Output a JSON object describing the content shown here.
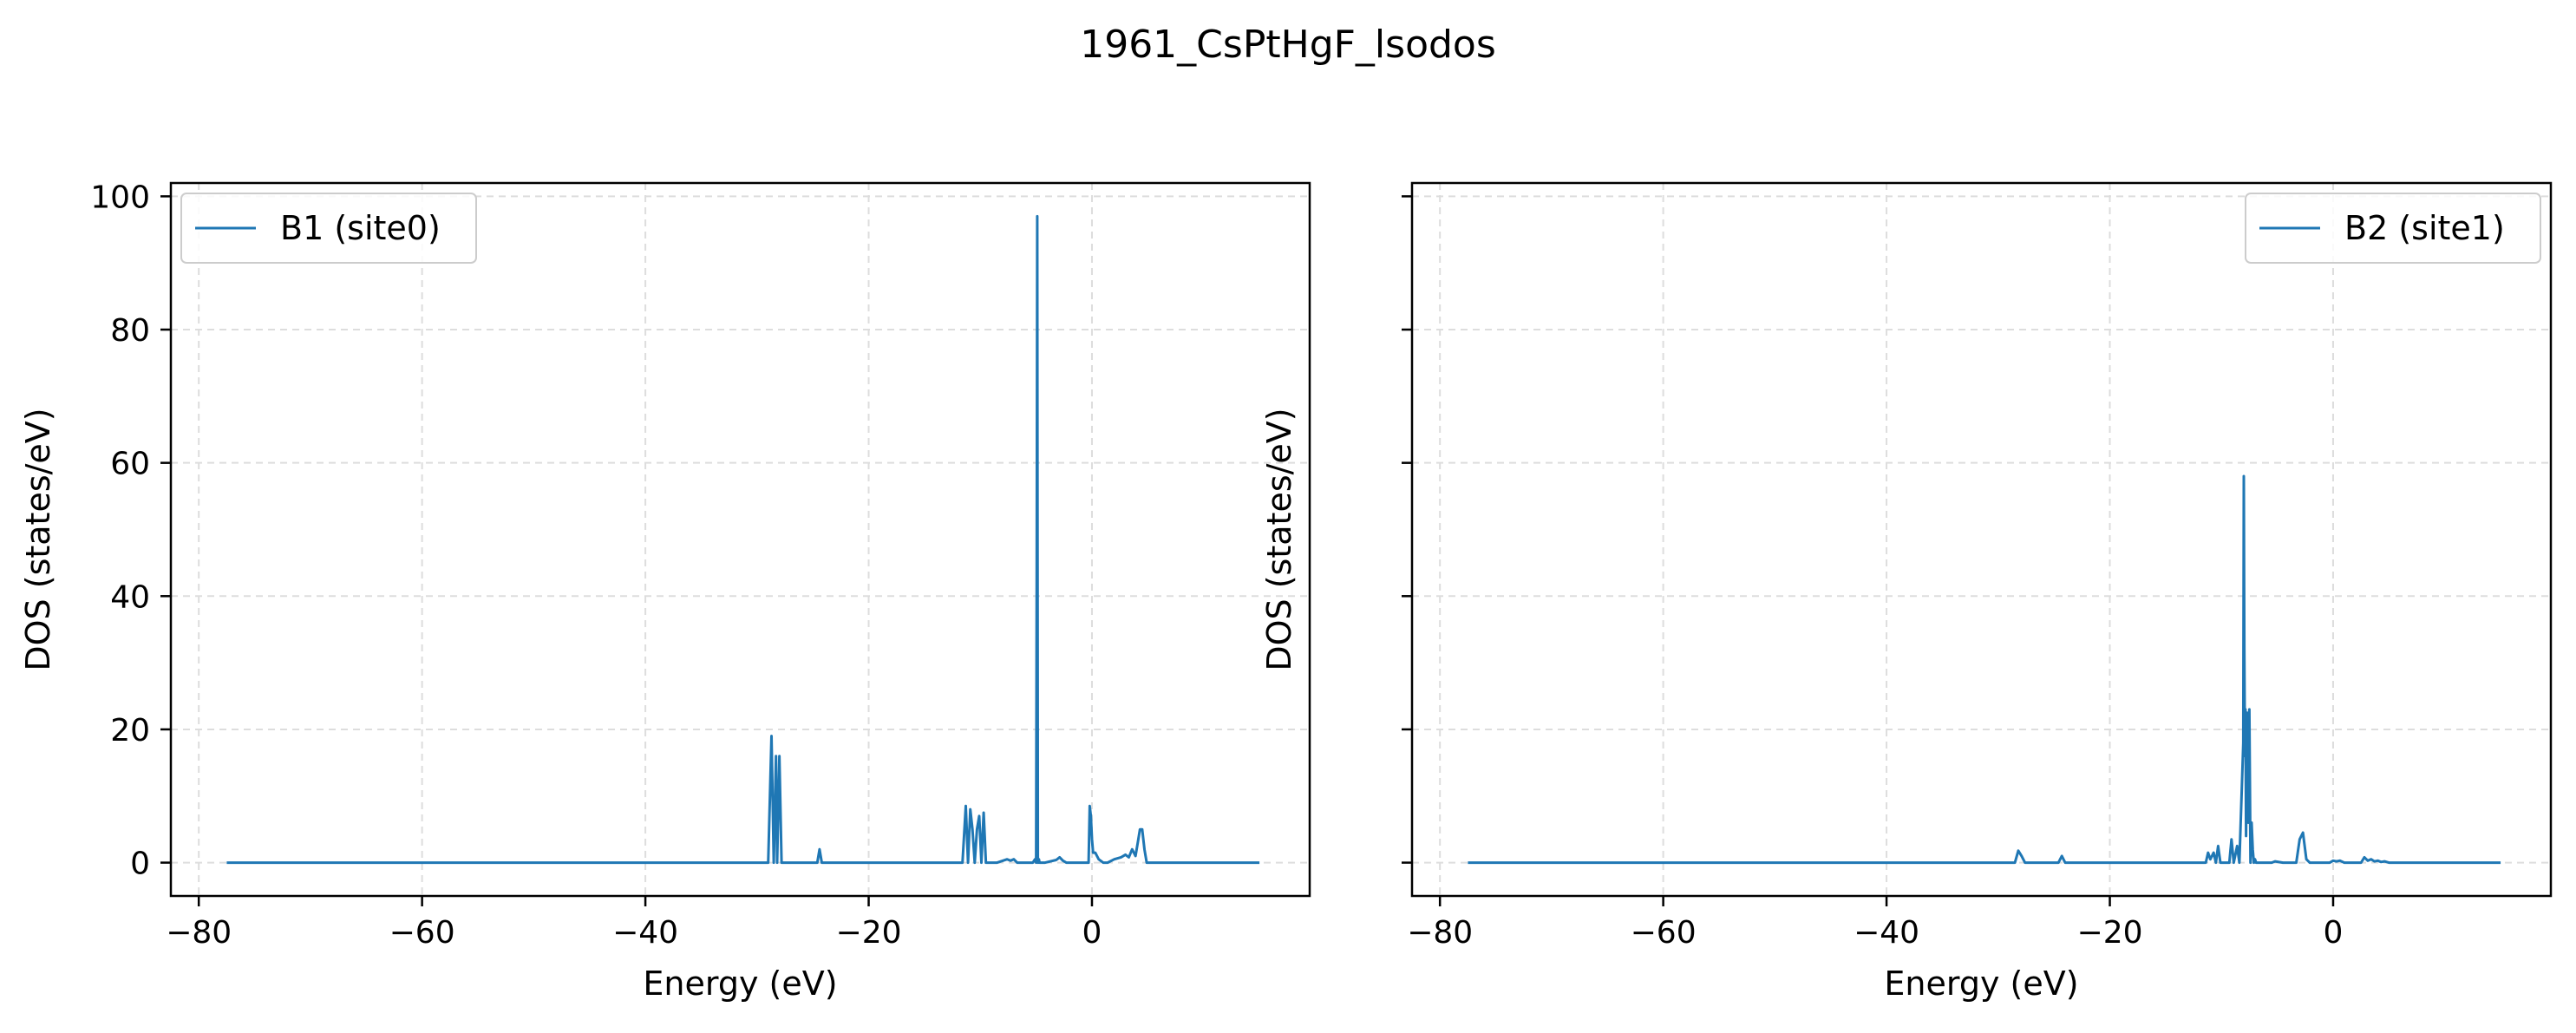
{
  "figure": {
    "title": "1961_CsPtHgF_lsodos"
  },
  "colors": {
    "series": "#1f77b4",
    "grid": "#dddddd",
    "axes": "#000000",
    "legend_edge": "#cccccc"
  },
  "chart_data": [
    {
      "type": "line",
      "title": "",
      "xlabel": "Energy (eV)",
      "ylabel": "DOS (states/eV)",
      "xlim": [
        -82.5,
        19.5
      ],
      "ylim": [
        -5,
        102
      ],
      "xticks": [
        -80,
        -60,
        -40,
        -20,
        0
      ],
      "xtick_labels": [
        "−80",
        "−60",
        "−40",
        "−20",
        "0"
      ],
      "yticks": [
        0,
        20,
        40,
        60,
        80,
        100
      ],
      "ytick_labels": [
        "0",
        "20",
        "40",
        "60",
        "80",
        "100"
      ],
      "grid": true,
      "legend_position": "upper-left",
      "series": [
        {
          "name": "B1 (site0)",
          "x": [
            -77.5,
            -29.0,
            -28.7,
            -28.5,
            -28.3,
            -28.2,
            -28.0,
            -27.8,
            -27.6,
            -24.6,
            -24.4,
            -24.2,
            -11.6,
            -11.3,
            -11.1,
            -10.9,
            -10.7,
            -10.5,
            -10.3,
            -10.1,
            -9.9,
            -9.7,
            -9.5,
            -9.3,
            -9.1,
            -8.8,
            -8.5,
            -7.6,
            -7.3,
            -7.0,
            -6.7,
            -5.3,
            -5.1,
            -5.0,
            -4.95,
            -4.9,
            -4.85,
            -4.8,
            -4.75,
            -4.7,
            -4.6,
            -4.4,
            -4.2,
            -3.2,
            -2.9,
            -2.6,
            -2.3,
            -0.6,
            -0.3,
            -0.2,
            -0.1,
            0.0,
            0.1,
            0.3,
            0.6,
            1.0,
            1.4,
            2.0,
            2.6,
            3.0,
            3.3,
            3.6,
            3.9,
            4.1,
            4.3,
            4.5,
            4.7,
            4.9,
            5.2,
            15.0
          ],
          "y": [
            0,
            0,
            19,
            0,
            16,
            0,
            16,
            0,
            0,
            0,
            2,
            0,
            0,
            8.5,
            0,
            8,
            5,
            0,
            5,
            7,
            0,
            7.5,
            0,
            0,
            0,
            0,
            0,
            0.5,
            0.3,
            0.5,
            0,
            0,
            0.5,
            0,
            44,
            97,
            0,
            0,
            0.5,
            0,
            0,
            0,
            0,
            0.4,
            0.8,
            0.3,
            0,
            0,
            0,
            8.5,
            7,
            3.5,
            1.5,
            1.5,
            0.5,
            0,
            0,
            0.5,
            0.8,
            1.2,
            0.8,
            2,
            1,
            3,
            5,
            5,
            2,
            0,
            0,
            0
          ]
        }
      ]
    },
    {
      "type": "line",
      "title": "",
      "xlabel": "Energy (eV)",
      "ylabel": "DOS (states/eV)",
      "xlim": [
        -82.5,
        19.5
      ],
      "ylim": [
        -5,
        102
      ],
      "xticks": [
        -80,
        -60,
        -40,
        -20,
        0
      ],
      "xtick_labels": [
        "−80",
        "−60",
        "−40",
        "−20",
        "0"
      ],
      "yticks": [
        0,
        20,
        40,
        60,
        80,
        100
      ],
      "ytick_labels": [],
      "grid": true,
      "legend_position": "upper-right",
      "series": [
        {
          "name": "B2 (site1)",
          "x": [
            -77.5,
            -28.5,
            -28.2,
            -27.9,
            -27.6,
            -24.6,
            -24.3,
            -24.0,
            -11.4,
            -11.2,
            -11.0,
            -10.7,
            -10.5,
            -10.3,
            -10.1,
            -9.6,
            -9.3,
            -9.1,
            -8.9,
            -8.6,
            -8.4,
            -8.2,
            -8.05,
            -8.0,
            -7.95,
            -7.9,
            -7.85,
            -7.8,
            -7.7,
            -7.6,
            -7.5,
            -7.4,
            -7.3,
            -7.2,
            -7.1,
            -7.0,
            -6.9,
            -6.8,
            -6.7,
            -6.5,
            -6.3,
            -5.5,
            -5.2,
            -4.5,
            -3.3,
            -3.0,
            -2.7,
            -2.4,
            -2.1,
            -1.5,
            -0.8,
            -0.3,
            0.0,
            0.3,
            0.6,
            1.0,
            2.5,
            2.8,
            3.1,
            3.4,
            3.7,
            4.0,
            4.3,
            4.6,
            5.0,
            15.0
          ],
          "y": [
            0,
            0,
            1.8,
            1,
            0,
            0,
            1,
            0,
            0,
            1.5,
            0.5,
            1.5,
            0,
            2.5,
            0,
            0,
            0,
            3.5,
            0,
            2.5,
            0,
            10,
            18,
            58,
            32,
            16,
            23,
            4,
            22.5,
            6,
            23,
            0,
            6,
            2,
            0,
            0.5,
            0,
            0,
            0,
            0,
            0,
            0,
            0.2,
            0,
            0,
            3.5,
            4.5,
            0.5,
            0,
            0,
            0,
            0,
            0.3,
            0.2,
            0.3,
            0,
            0,
            0.8,
            0.3,
            0.5,
            0.2,
            0.3,
            0.1,
            0.2,
            0,
            0
          ]
        }
      ]
    }
  ]
}
